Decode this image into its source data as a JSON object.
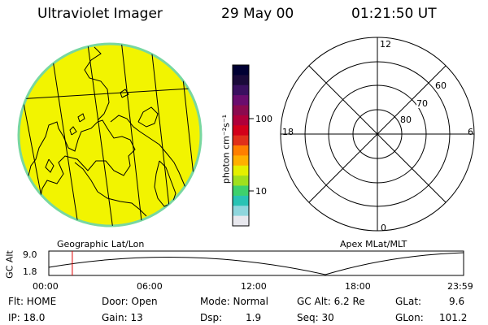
{
  "header": {
    "instrument": "Ultraviolet Imager",
    "date": "29 May 00",
    "time": "01:21:50 UT"
  },
  "colorbar": {
    "unit_label": "photon cm⁻²s⁻¹",
    "tick_labels": [
      "100",
      "10"
    ],
    "colors_top_to_bottom": [
      "#000033",
      "#1a0a3a",
      "#3a1060",
      "#6a0d6e",
      "#8b0a4f",
      "#b0003a",
      "#d3001a",
      "#e0301a",
      "#ff7f00",
      "#ffb000",
      "#e4f000",
      "#9fe01e",
      "#3ed16d",
      "#29c3b4",
      "#8fd6dd",
      "#e8e8ee"
    ]
  },
  "geographic_panel": {
    "label": "Geographic Lat/Lon",
    "disk_fill": "#f2f400",
    "disk_rim": "#78d7a0"
  },
  "polar_panel": {
    "label": "Apex MLat/MLT",
    "mlt_labels": {
      "top": "12",
      "bottom": "0",
      "left": "18",
      "right": "6"
    },
    "lat_labels": [
      "60",
      "70",
      "80"
    ]
  },
  "altitude_plot": {
    "y_label": "GC Alt",
    "y_ticks": [
      "9.0",
      "1.8"
    ],
    "x_ticks": [
      "00:00",
      "06:00",
      "12:00",
      "18:00",
      "23:59"
    ],
    "current_time_marker_hours": 1.36,
    "marker_color": "#e00000"
  },
  "status": {
    "flt": "Flt: HOME",
    "door": "Door: Open",
    "mode": "Mode: Normal",
    "gc_alt": "GC Alt: 6.2 Re",
    "glat_label": "GLat:",
    "glat_value": "9.6",
    "ip": "IP: 18.0",
    "gain": "Gain: 13",
    "dsp_label": "Dsp:",
    "dsp_value": "1.9",
    "seq": "Seq: 30",
    "glon_label": "GLon:",
    "glon_value": "101.2"
  }
}
